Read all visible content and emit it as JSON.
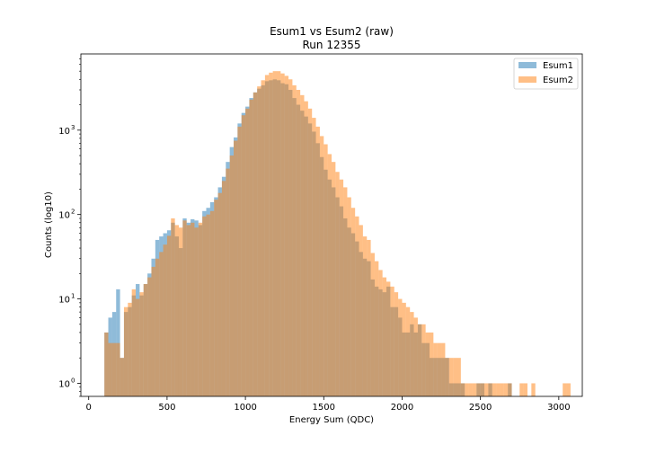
{
  "chart_data": {
    "type": "bar",
    "title_line1": "Esum1 vs Esum2 (raw)",
    "title_line2": "Run 12355",
    "xlabel": "Energy Sum (QDC)",
    "ylabel": "Counts (log10)",
    "yscale": "log",
    "xlim": [
      -50,
      3150
    ],
    "ylim": [
      0.7,
      8000
    ],
    "xticks": [
      0,
      500,
      1000,
      1500,
      2000,
      2500,
      3000
    ],
    "xtick_labels": [
      "0",
      "500",
      "1000",
      "1500",
      "2000",
      "2500",
      "3000"
    ],
    "yticks": [
      1,
      10,
      100,
      1000
    ],
    "ytick_labels": [
      "10",
      "10",
      "10",
      "10"
    ],
    "ytick_exponents": [
      "0",
      "1",
      "2",
      "3"
    ],
    "grid": false,
    "legend_position": "top-right",
    "bin_width": 25,
    "series": [
      {
        "name": "Esum1",
        "color": "#1f77b4",
        "x": [
          100,
          125,
          150,
          175,
          200,
          225,
          250,
          275,
          300,
          325,
          350,
          375,
          400,
          425,
          450,
          475,
          500,
          525,
          550,
          575,
          600,
          625,
          650,
          675,
          700,
          725,
          750,
          775,
          800,
          825,
          850,
          875,
          900,
          925,
          950,
          975,
          1000,
          1025,
          1050,
          1075,
          1100,
          1125,
          1150,
          1175,
          1200,
          1225,
          1250,
          1275,
          1300,
          1325,
          1350,
          1375,
          1400,
          1425,
          1450,
          1475,
          1500,
          1525,
          1550,
          1575,
          1600,
          1625,
          1650,
          1675,
          1700,
          1725,
          1750,
          1775,
          1800,
          1825,
          1850,
          1875,
          1900,
          1925,
          1950,
          1975,
          2000,
          2025,
          2050,
          2075,
          2100,
          2125,
          2150,
          2175,
          2200,
          2225,
          2250,
          2275,
          2300,
          2325,
          2350,
          2375,
          2400,
          2425,
          2450,
          2475,
          2500,
          2525,
          2550,
          2575,
          2600,
          2625,
          2650,
          2675
        ],
        "values": [
          4,
          6,
          7,
          13,
          2,
          7,
          8,
          11,
          15,
          11,
          15,
          20,
          30,
          50,
          55,
          60,
          65,
          80,
          55,
          40,
          90,
          80,
          88,
          85,
          75,
          110,
          120,
          140,
          160,
          210,
          280,
          420,
          630,
          820,
          1200,
          1600,
          1900,
          2400,
          2800,
          3100,
          3400,
          3800,
          3900,
          4000,
          3900,
          3600,
          3500,
          3000,
          2400,
          2000,
          1700,
          1450,
          1200,
          960,
          700,
          480,
          340,
          260,
          210,
          160,
          125,
          90,
          70,
          60,
          48,
          36,
          30,
          28,
          17,
          14,
          13,
          12,
          14,
          8,
          8,
          6,
          4,
          4,
          5,
          4,
          5,
          3,
          3,
          2,
          2,
          2,
          2,
          2,
          1,
          1,
          1,
          1,
          0,
          0,
          0,
          1,
          1,
          0,
          1,
          0,
          0,
          0,
          0,
          1
        ]
      },
      {
        "name": "Esum2",
        "color": "#ff7f0e",
        "x": [
          100,
          125,
          150,
          175,
          200,
          225,
          250,
          275,
          300,
          325,
          350,
          375,
          400,
          425,
          450,
          475,
          500,
          525,
          550,
          575,
          600,
          625,
          650,
          675,
          700,
          725,
          750,
          775,
          800,
          825,
          850,
          875,
          900,
          925,
          950,
          975,
          1000,
          1025,
          1050,
          1075,
          1100,
          1125,
          1150,
          1175,
          1200,
          1225,
          1250,
          1275,
          1300,
          1325,
          1350,
          1375,
          1400,
          1425,
          1450,
          1475,
          1500,
          1525,
          1550,
          1575,
          1600,
          1625,
          1650,
          1675,
          1700,
          1725,
          1750,
          1775,
          1800,
          1825,
          1850,
          1875,
          1900,
          1925,
          1950,
          1975,
          2000,
          2025,
          2050,
          2075,
          2100,
          2125,
          2150,
          2175,
          2200,
          2225,
          2250,
          2275,
          2300,
          2325,
          2350,
          2375,
          2400,
          2425,
          2450,
          2475,
          2500,
          2525,
          2550,
          2575,
          2600,
          2625,
          2650,
          2675,
          2700,
          2725,
          2750,
          2775,
          2800,
          2825,
          2850,
          2875,
          2900,
          2925,
          2950,
          2975,
          3000,
          3025,
          3050
        ],
        "values": [
          4,
          3,
          3,
          3,
          2,
          8,
          9,
          13,
          10,
          12,
          15,
          18,
          24,
          30,
          36,
          44,
          56,
          90,
          75,
          70,
          85,
          75,
          80,
          70,
          80,
          95,
          100,
          110,
          150,
          180,
          250,
          350,
          500,
          750,
          1100,
          1500,
          1800,
          2300,
          2800,
          3300,
          3900,
          4500,
          4800,
          5000,
          5000,
          4700,
          4400,
          4000,
          3400,
          3000,
          2600,
          2200,
          1800,
          1400,
          1100,
          850,
          680,
          520,
          420,
          320,
          260,
          210,
          160,
          120,
          95,
          75,
          55,
          50,
          35,
          28,
          22,
          18,
          16,
          14,
          12,
          10,
          9,
          8,
          7,
          6,
          5,
          5,
          4,
          4,
          3,
          3,
          3,
          2,
          2,
          2,
          2,
          1,
          1,
          1,
          1,
          1,
          1,
          1,
          1,
          1,
          1,
          1,
          1,
          1,
          0,
          0,
          1,
          1,
          0,
          1,
          0,
          0,
          0,
          0,
          0,
          0,
          0,
          1,
          1
        ]
      }
    ]
  }
}
